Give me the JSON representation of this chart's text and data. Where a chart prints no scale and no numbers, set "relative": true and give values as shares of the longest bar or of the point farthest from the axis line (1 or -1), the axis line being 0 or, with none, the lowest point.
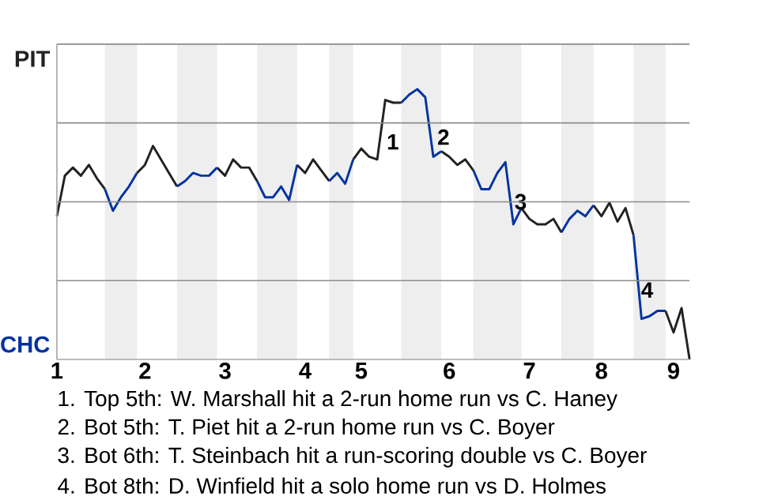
{
  "chart_data": {
    "type": "line",
    "relative": true,
    "categories": [
      "1",
      null,
      null,
      null,
      null,
      null,
      null,
      null,
      null,
      null,
      null,
      "2",
      null,
      null,
      null,
      null,
      null,
      null,
      null,
      null,
      null,
      "3",
      null,
      null,
      null,
      null,
      null,
      null,
      null,
      null,
      null,
      "4",
      null,
      null,
      null,
      null,
      null,
      null,
      "5",
      null,
      null,
      null,
      null,
      null,
      null,
      null,
      null,
      null,
      null,
      "6",
      null,
      null,
      null,
      null,
      null,
      null,
      null,
      null,
      null,
      "7",
      null,
      null,
      null,
      null,
      null,
      null,
      null,
      null,
      "8",
      null,
      null,
      null,
      null,
      null,
      null,
      null,
      null,
      "9",
      null,
      null
    ],
    "series": [
      {
        "name": "PIT",
        "color": "#222222",
        "values": [
          0.53,
          0.68,
          0.71,
          0.68,
          0.72,
          0.67,
          0.63,
          null,
          null,
          null,
          0.69,
          0.72,
          0.79,
          0.74,
          0.69,
          0.64,
          null,
          null,
          null,
          null,
          0.71,
          0.68,
          0.74,
          0.71,
          0.71,
          0.66,
          null,
          null,
          null,
          null,
          0.72,
          0.69,
          0.74,
          0.7,
          0.66,
          null,
          null,
          0.74,
          0.78,
          0.75,
          0.74,
          0.96,
          0.95,
          0.95,
          null,
          null,
          null,
          null,
          0.77,
          0.75,
          0.72,
          0.74,
          0.7,
          null,
          null,
          null,
          null,
          null,
          0.56,
          0.52,
          0.5,
          0.5,
          0.52,
          0.47,
          null,
          null,
          null,
          0.57,
          0.53,
          0.58,
          0.51,
          0.56,
          0.46,
          null,
          null,
          null,
          0.18,
          0.1,
          0.19,
          0
        ]
      },
      {
        "name": "CHC",
        "color": "#0033a0",
        "values": [
          null,
          null,
          null,
          null,
          null,
          null,
          0.63,
          0.55,
          0.6,
          0.64,
          0.69,
          null,
          null,
          null,
          null,
          0.64,
          0.66,
          0.69,
          0.68,
          0.68,
          0.71,
          null,
          null,
          null,
          null,
          0.66,
          0.6,
          0.6,
          0.64,
          0.59,
          0.72,
          null,
          null,
          null,
          0.66,
          0.69,
          0.65,
          0.74,
          null,
          null,
          null,
          null,
          null,
          0.95,
          0.98,
          1,
          0.97,
          0.75,
          0.77,
          null,
          null,
          null,
          0.7,
          0.63,
          0.63,
          0.69,
          0.73,
          0.5,
          0.56,
          null,
          null,
          null,
          null,
          0.47,
          0.52,
          0.55,
          0.53,
          0.57,
          null,
          null,
          null,
          null,
          0.46,
          0.15,
          0.16,
          0.18,
          0.18,
          null,
          null,
          null
        ]
      }
    ],
    "grid": "y",
    "marker": "none",
    "line_style": "solid",
    "annotations": [
      "1",
      "2",
      "3",
      "4",
      "1. Top 5th: W. Marshall hit a 2-run home run vs C. Haney",
      "2. Bot 5th: T. Piet hit a 2-run home run vs C. Boyer",
      "3. Bot 6th: T. Steinbach hit a run-scoring double vs C. Boyer",
      "4. Bot 8th: D. Winfield hit a solo home run vs D. Holmes"
    ]
  }
}
